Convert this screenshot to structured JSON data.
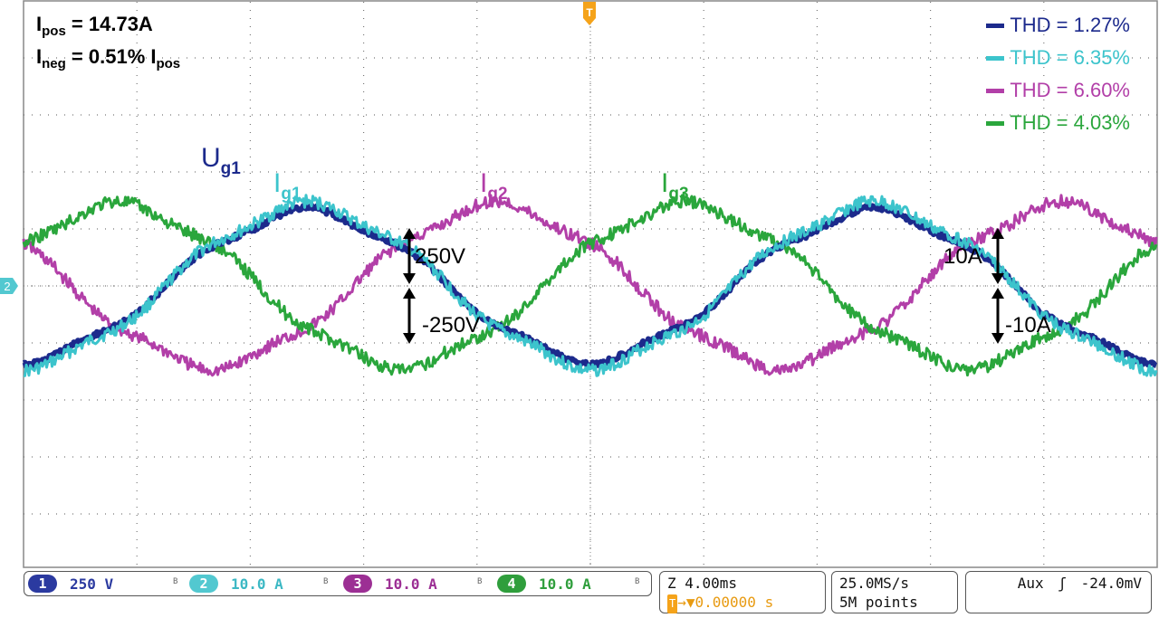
{
  "chart_data": {
    "type": "line",
    "title": "",
    "xlabel": "",
    "ylabel": "",
    "grid": true,
    "x_divisions": 10,
    "y_divisions": 8,
    "x_range_ms": [
      -20,
      20
    ],
    "grid_voltage_series": [
      {
        "name": "Ug1",
        "channel": 1,
        "color": "#1c2a8c",
        "amplitude_div": 1.3,
        "phase_deg": -90,
        "thd": "THD = 1.27%"
      }
    ],
    "grid_current_series": [
      {
        "name": "Ig1",
        "channel": 2,
        "color": "#3cc4cc",
        "amplitude_div": 1.4,
        "phase_deg": -90,
        "thd": "THD = 6.35%"
      },
      {
        "name": "Ig2",
        "channel": 3,
        "color": "#b23fa8",
        "amplitude_div": 1.4,
        "phase_deg": 150,
        "thd": "THD = 6.60%"
      },
      {
        "name": "Ig3",
        "channel": 4,
        "color": "#2aa63c",
        "amplitude_div": 1.4,
        "phase_deg": 30,
        "thd": "THD = 4.03%"
      }
    ],
    "period_ms": 20
  },
  "annotations": {
    "ipos_main": "I",
    "ipos_sub": "pos",
    "ipos_val": " = 14.73A",
    "ineg_main": "I",
    "ineg_sub": "neg",
    "ineg_val": " = 0.51% I",
    "ineg_sub2": "pos"
  },
  "wave_labels": {
    "ug1_main": "U",
    "ug1_sub": "g1",
    "ig1_main": "I",
    "ig1_sub": "g1",
    "ig2_main": "I",
    "ig2_sub": "g2",
    "ig3_main": "I",
    "ig3_sub": "g3"
  },
  "scale_labels": {
    "v_pos": "250V",
    "v_neg": "-250V",
    "a_pos": "10A",
    "a_neg": "-10A"
  },
  "status": {
    "channels": [
      {
        "num": "1",
        "value": "250 V",
        "color": "#2b3aa0",
        "text_color": "#2b3aa0"
      },
      {
        "num": "2",
        "value": "10.0 A",
        "color": "#52c8d0",
        "text_color": "#3cb8c4"
      },
      {
        "num": "3",
        "value": "10.0 A",
        "color": "#9c2f94",
        "text_color": "#9c2f94"
      },
      {
        "num": "4",
        "value": "10.0 A",
        "color": "#2f9e3c",
        "text_color": "#2f9e3c"
      }
    ],
    "bw_mark": "B",
    "timebase": "Z 4.00ms",
    "trigger_pos": "0.00000 s",
    "trigger_tag": "T",
    "sample_rate": "25.0MS/s",
    "record_length": "5M points",
    "trigger_source": "Aux",
    "trigger_slope": "ʃ",
    "trigger_level": "-24.0mV"
  },
  "markers": {
    "trigger_top": "T",
    "ground_ref": "2"
  }
}
